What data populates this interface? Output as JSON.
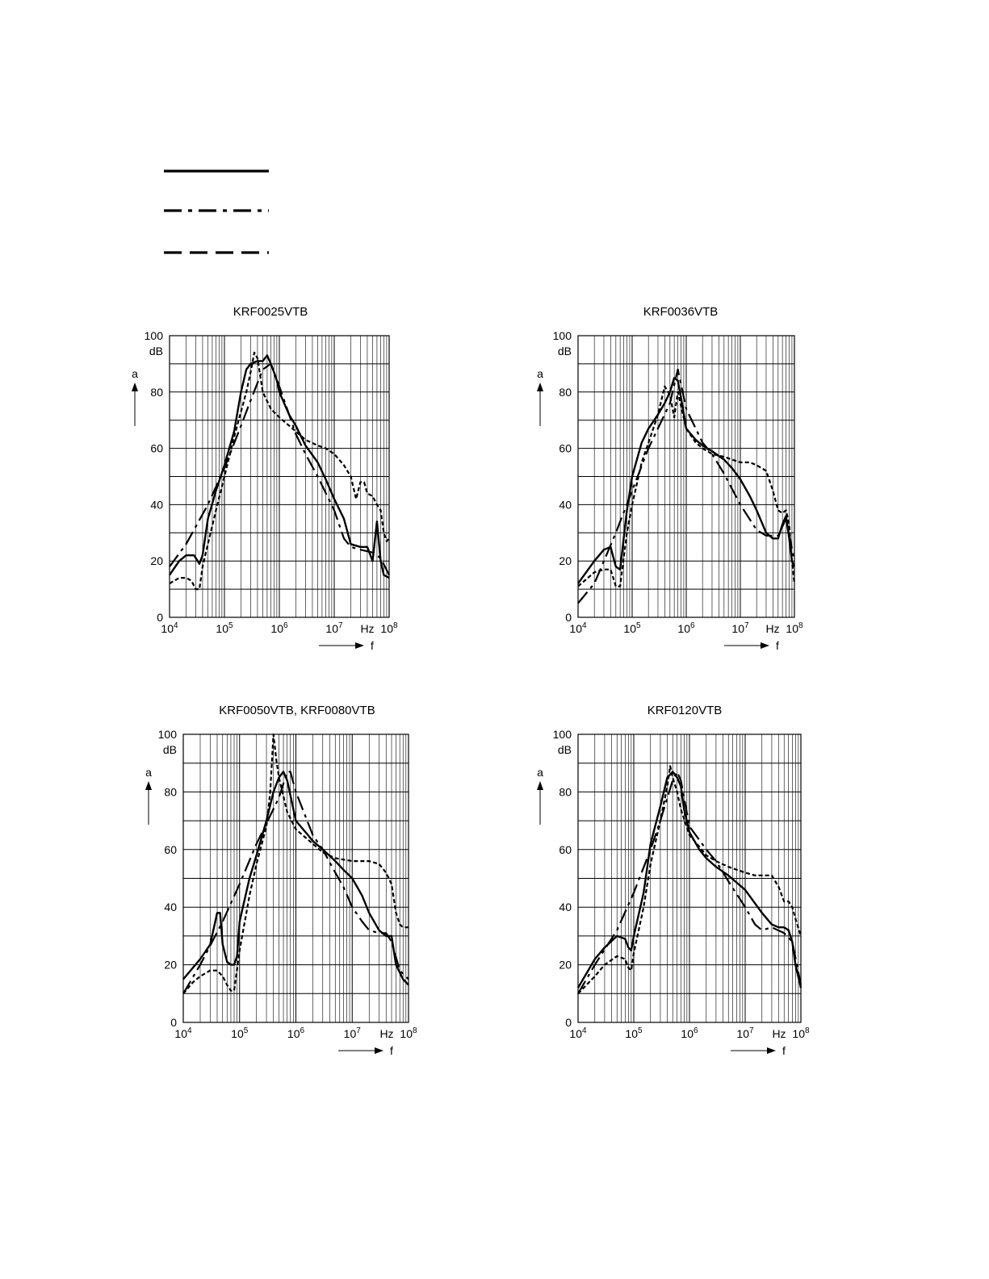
{
  "legend": {
    "entries": [
      {
        "style": "solid"
      },
      {
        "style": "dashdot"
      },
      {
        "style": "dash"
      }
    ]
  },
  "chart_data": [
    {
      "type": "line",
      "title": "KRF0025VTB",
      "ylabel": "a",
      "yunit": "dB",
      "xlabel": "f",
      "xunit": "Hz",
      "xscale": "log",
      "xlim": [
        10000,
        100000000
      ],
      "ylim": [
        0,
        100
      ],
      "xticks": [
        10000,
        100000,
        1000000,
        10000000,
        100000000
      ],
      "yticks": [
        0,
        20,
        40,
        60,
        80,
        100
      ],
      "grid": true,
      "series": [
        {
          "style": "solid",
          "x": [
            10000,
            15000,
            20000,
            28000,
            35000,
            40000,
            50000,
            70000,
            100000,
            150000,
            200000,
            250000,
            300000,
            400000,
            500000,
            600000,
            700000,
            800000,
            900000,
            1000000,
            1500000,
            2000000,
            3000000,
            5000000,
            7000000,
            10000000,
            15000000,
            20000000,
            30000000,
            40000000,
            50000000,
            60000000,
            70000000,
            80000000,
            100000000
          ],
          "y": [
            15,
            20,
            22,
            22,
            19,
            22,
            35,
            45,
            54,
            66,
            80,
            88,
            90,
            91,
            91,
            93,
            90,
            87,
            84,
            80,
            72,
            68,
            61,
            55,
            49,
            42,
            35,
            26,
            25,
            25,
            20,
            34,
            20,
            15,
            14
          ]
        },
        {
          "style": "dashdot",
          "x": [
            10000,
            20000,
            50000,
            100000,
            200000,
            300000,
            500000,
            700000,
            1000000,
            2000000,
            3000000,
            5000000,
            10000000,
            15000000,
            20000000,
            30000000,
            50000000,
            70000000,
            100000000
          ],
          "y": [
            18,
            26,
            40,
            53,
            68,
            77,
            88,
            90,
            82,
            65,
            58,
            50,
            38,
            28,
            25,
            24,
            23,
            21,
            15
          ]
        },
        {
          "style": "dash",
          "x": [
            10000,
            15000,
            20000,
            25000,
            30000,
            35000,
            40000,
            50000,
            70000,
            100000,
            150000,
            200000,
            250000,
            300000,
            350000,
            400000,
            500000,
            700000,
            1000000,
            2000000,
            3000000,
            5000000,
            7000000,
            10000000,
            15000000,
            20000000,
            25000000,
            30000000,
            35000000,
            40000000,
            50000000,
            60000000,
            70000000,
            80000000,
            90000000,
            100000000
          ],
          "y": [
            12,
            14,
            14,
            13,
            10,
            10,
            18,
            26,
            38,
            50,
            64,
            73,
            80,
            87,
            94,
            92,
            80,
            74,
            71,
            66,
            63,
            61,
            60,
            58,
            54,
            50,
            42,
            48,
            48,
            44,
            43,
            40,
            38,
            30,
            27,
            28
          ]
        }
      ]
    },
    {
      "type": "line",
      "title": "KRF0036VTB",
      "ylabel": "a",
      "yunit": "dB",
      "xlabel": "f",
      "xunit": "Hz",
      "xscale": "log",
      "xlim": [
        10000,
        100000000
      ],
      "ylim": [
        0,
        100
      ],
      "xticks": [
        10000,
        100000,
        1000000,
        10000000,
        100000000
      ],
      "yticks": [
        0,
        20,
        40,
        60,
        80,
        100
      ],
      "grid": true,
      "series": [
        {
          "style": "solid",
          "x": [
            10000,
            20000,
            30000,
            40000,
            50000,
            60000,
            80000,
            100000,
            150000,
            200000,
            300000,
            400000,
            500000,
            600000,
            700000,
            800000,
            1000000,
            1500000,
            2000000,
            3000000,
            5000000,
            7000000,
            10000000,
            15000000,
            20000000,
            30000000,
            40000000,
            50000000,
            60000000,
            70000000,
            80000000,
            90000000,
            100000000
          ],
          "y": [
            12,
            20,
            24,
            25,
            18,
            17,
            38,
            50,
            62,
            67,
            72,
            76,
            80,
            85,
            84,
            78,
            67,
            63,
            61,
            59,
            56,
            53,
            49,
            43,
            38,
            30,
            28,
            28,
            33,
            36,
            28,
            20,
            18
          ]
        },
        {
          "style": "dashdot",
          "x": [
            10000,
            20000,
            50000,
            100000,
            200000,
            500000,
            700000,
            1000000,
            2000000,
            3000000,
            5000000,
            10000000,
            20000000,
            30000000,
            50000000,
            70000000,
            100000000
          ],
          "y": [
            5,
            12,
            30,
            45,
            60,
            76,
            88,
            74,
            62,
            58,
            51,
            40,
            31,
            29,
            29,
            35,
            20
          ]
        },
        {
          "style": "dash",
          "x": [
            10000,
            20000,
            30000,
            40000,
            50000,
            60000,
            80000,
            100000,
            150000,
            200000,
            300000,
            400000,
            500000,
            600000,
            700000,
            800000,
            1000000,
            1500000,
            2000000,
            3000000,
            5000000,
            10000000,
            15000000,
            20000000,
            30000000,
            40000000,
            50000000,
            60000000,
            70000000,
            80000000,
            90000000,
            100000000
          ],
          "y": [
            11,
            16,
            17,
            17,
            11,
            11,
            30,
            40,
            55,
            62,
            72,
            82,
            79,
            71,
            80,
            75,
            67,
            62,
            60,
            58,
            57,
            55,
            55,
            54,
            52,
            45,
            38,
            37,
            38,
            33,
            20,
            12
          ]
        }
      ]
    },
    {
      "type": "line",
      "title": "KRF0050VTB, KRF0080VTB",
      "ylabel": "a",
      "yunit": "dB",
      "xlabel": "f",
      "xunit": "Hz",
      "xscale": "log",
      "xlim": [
        10000,
        100000000
      ],
      "ylim": [
        0,
        100
      ],
      "xticks": [
        10000,
        100000,
        1000000,
        10000000,
        100000000
      ],
      "yticks": [
        0,
        20,
        40,
        60,
        80,
        100
      ],
      "grid": true,
      "series": [
        {
          "style": "solid",
          "x": [
            10000,
            20000,
            30000,
            40000,
            45000,
            50000,
            60000,
            70000,
            80000,
            90000,
            100000,
            150000,
            200000,
            300000,
            400000,
            500000,
            600000,
            700000,
            1000000,
            2000000,
            3000000,
            5000000,
            7000000,
            10000000,
            15000000,
            20000000,
            30000000,
            40000000,
            50000000,
            60000000,
            80000000,
            100000000
          ],
          "y": [
            15,
            22,
            27,
            38,
            38,
            27,
            21,
            20,
            20,
            23,
            35,
            50,
            58,
            70,
            80,
            85,
            87,
            84,
            70,
            63,
            60,
            56,
            53,
            50,
            44,
            38,
            32,
            30,
            30,
            20,
            15,
            13
          ]
        },
        {
          "style": "dashdot",
          "x": [
            10000,
            20000,
            50000,
            100000,
            200000,
            500000,
            700000,
            800000,
            1000000,
            2000000,
            3000000,
            5000000,
            7000000,
            10000000,
            15000000,
            20000000,
            30000000,
            40000000,
            50000000,
            70000000,
            100000000
          ],
          "y": [
            10,
            20,
            35,
            48,
            62,
            78,
            87,
            87,
            80,
            65,
            60,
            52,
            47,
            40,
            35,
            32,
            31,
            31,
            28,
            18,
            15
          ]
        },
        {
          "style": "dash",
          "x": [
            10000,
            15000,
            20000,
            30000,
            40000,
            50000,
            60000,
            70000,
            80000,
            100000,
            150000,
            200000,
            300000,
            350000,
            400000,
            450000,
            500000,
            700000,
            1000000,
            2000000,
            3000000,
            5000000,
            10000000,
            15000000,
            20000000,
            30000000,
            40000000,
            50000000,
            60000000,
            70000000,
            80000000,
            100000000
          ],
          "y": [
            10,
            14,
            16,
            18,
            18,
            16,
            13,
            11,
            11,
            25,
            44,
            55,
            68,
            80,
            100,
            91,
            85,
            73,
            67,
            62,
            59,
            57,
            56,
            56,
            56,
            55,
            52,
            48,
            38,
            34,
            33,
            33
          ]
        }
      ]
    },
    {
      "type": "line",
      "title": "KRF0120VTB",
      "ylabel": "a",
      "yunit": "dB",
      "xlabel": "f",
      "xunit": "Hz",
      "xscale": "log",
      "xlim": [
        10000,
        100000000
      ],
      "ylim": [
        0,
        100
      ],
      "xticks": [
        10000,
        100000,
        1000000,
        10000000,
        100000000
      ],
      "yticks": [
        0,
        20,
        40,
        60,
        80,
        100
      ],
      "grid": true,
      "series": [
        {
          "style": "solid",
          "x": [
            10000,
            20000,
            30000,
            50000,
            70000,
            80000,
            90000,
            100000,
            150000,
            200000,
            300000,
            400000,
            500000,
            600000,
            700000,
            800000,
            1000000,
            1500000,
            2000000,
            3000000,
            5000000,
            10000000,
            20000000,
            30000000,
            40000000,
            50000000,
            60000000,
            70000000,
            80000000,
            100000000
          ],
          "y": [
            12,
            22,
            26,
            30,
            29,
            26,
            25,
            30,
            45,
            62,
            75,
            85,
            87,
            85,
            82,
            74,
            66,
            60,
            57,
            54,
            51,
            46,
            38,
            34,
            33,
            33,
            32,
            28,
            20,
            12
          ]
        },
        {
          "style": "dashdot",
          "x": [
            10000,
            20000,
            50000,
            100000,
            200000,
            300000,
            500000,
            600000,
            700000,
            1000000,
            2000000,
            3000000,
            5000000,
            10000000,
            15000000,
            20000000,
            30000000,
            50000000,
            70000000,
            100000000
          ],
          "y": [
            10,
            20,
            32,
            45,
            60,
            70,
            84,
            87,
            84,
            68,
            60,
            56,
            49,
            40,
            34,
            32,
            33,
            31,
            28,
            13
          ]
        },
        {
          "style": "dash",
          "x": [
            10000,
            20000,
            30000,
            50000,
            70000,
            80000,
            90000,
            100000,
            150000,
            200000,
            300000,
            400000,
            450000,
            500000,
            600000,
            700000,
            1000000,
            1500000,
            2000000,
            3000000,
            5000000,
            10000000,
            15000000,
            20000000,
            30000000,
            40000000,
            50000000,
            60000000,
            70000000,
            80000000,
            100000000
          ],
          "y": [
            10,
            16,
            20,
            23,
            22,
            19,
            18,
            24,
            40,
            55,
            70,
            82,
            89,
            85,
            80,
            74,
            65,
            61,
            58,
            56,
            54,
            52,
            51,
            51,
            51,
            47,
            42,
            42,
            40,
            36,
            30
          ]
        }
      ]
    }
  ]
}
